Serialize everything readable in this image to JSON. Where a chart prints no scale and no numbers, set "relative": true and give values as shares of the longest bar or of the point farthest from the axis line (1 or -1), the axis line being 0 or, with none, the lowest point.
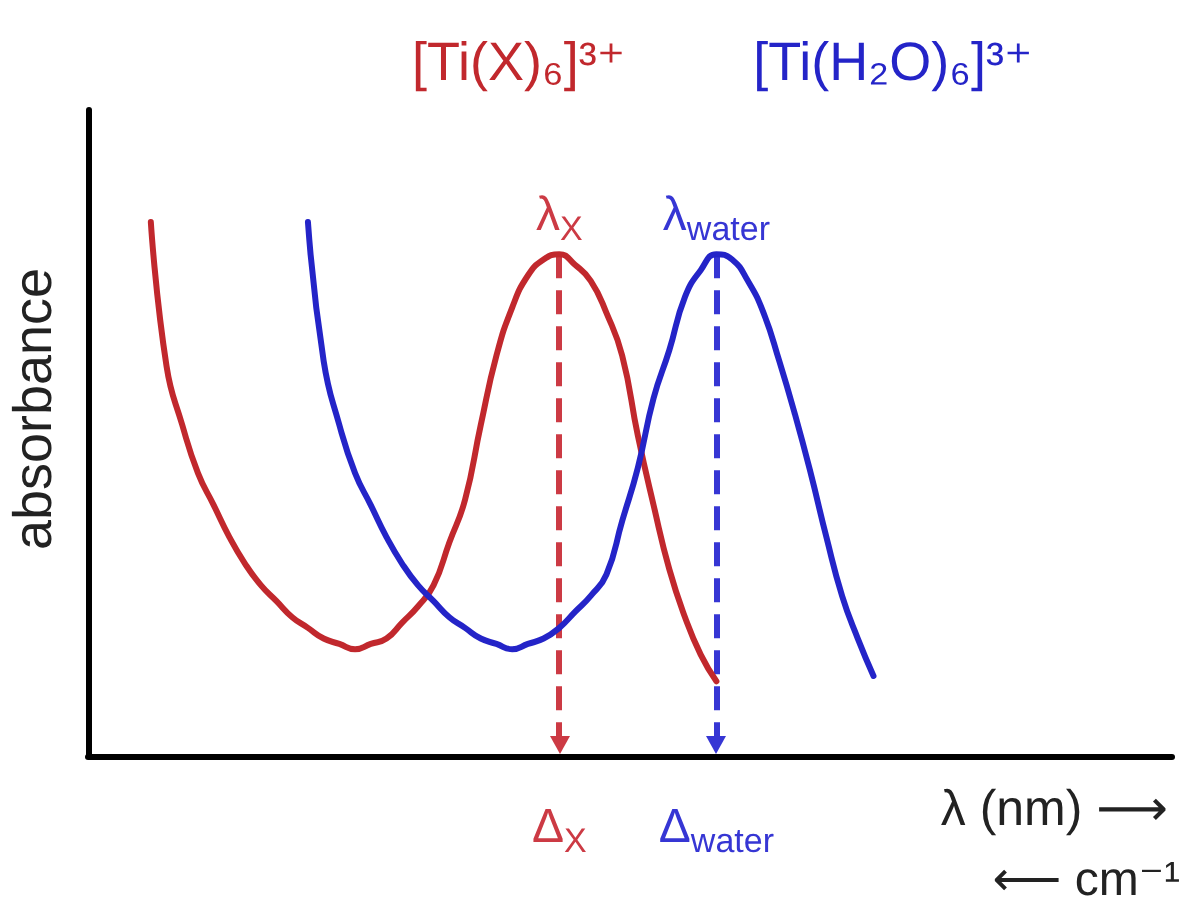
{
  "chart_data": {
    "type": "line",
    "relative": true,
    "ylabel": "absorbance",
    "xlabel": "λ (nm) ⟶",
    "annotations": [
      "⟵ cm⁻¹"
    ],
    "categories": [
      null,
      null,
      null,
      null,
      null,
      null,
      null,
      null,
      null,
      null,
      null,
      null,
      null,
      null,
      null,
      null,
      null,
      null,
      null,
      null,
      null,
      null,
      null,
      null,
      null,
      null,
      null,
      null,
      null,
      null,
      "Δ$_{X}$",
      null,
      null,
      null,
      null,
      null,
      null,
      null,
      null,
      null,
      "Δ$_{water}$",
      null,
      null,
      null,
      null,
      null,
      null,
      null,
      null,
      null,
      null,
      null,
      null,
      null,
      null,
      null,
      null,
      null,
      null,
      null,
      null,
      null,
      null,
      null,
      null,
      null,
      null,
      null,
      null,
      null
    ],
    "series": [
      {
        "name": "[Ti(X)₆]³⁺",
        "color": "#c1282d",
        "values": [
          null,
          null,
          null,
          null,
          1.0,
          0.73,
          0.62,
          0.53,
          0.47,
          0.41,
          0.36,
          0.32,
          0.29,
          0.26,
          0.24,
          0.22,
          0.21,
          0.2,
          0.21,
          0.22,
          0.25,
          0.28,
          0.32,
          0.4,
          0.48,
          0.62,
          0.75,
          0.84,
          0.9,
          0.93,
          0.94,
          0.92,
          0.89,
          0.83,
          0.75,
          0.6,
          0.47,
          0.35,
          0.26,
          0.19,
          0.14,
          null,
          null,
          null,
          null,
          null,
          null,
          null,
          null,
          null,
          null,
          null,
          null,
          null,
          null,
          null,
          null,
          null,
          null,
          null,
          null,
          null,
          null,
          null,
          null,
          null,
          null,
          null,
          null,
          null
        ]
      },
      {
        "name": "[Ti(H₂O)₆]³⁺",
        "color": "#2424c8",
        "values": [
          null,
          null,
          null,
          null,
          null,
          null,
          null,
          null,
          null,
          null,
          null,
          null,
          null,
          null,
          1.0,
          0.74,
          0.62,
          0.53,
          0.47,
          0.41,
          0.36,
          0.32,
          0.29,
          0.26,
          0.24,
          0.22,
          0.21,
          0.2,
          0.21,
          0.22,
          0.24,
          0.27,
          0.3,
          0.34,
          0.44,
          0.54,
          0.67,
          0.76,
          0.86,
          0.91,
          0.94,
          0.93,
          0.89,
          0.83,
          0.74,
          0.64,
          0.53,
          0.41,
          0.3,
          0.22,
          0.15,
          null,
          null,
          null,
          null,
          null,
          null,
          null,
          null,
          null,
          null,
          null,
          null,
          null,
          null,
          null,
          null,
          null,
          null,
          null
        ]
      }
    ],
    "ref_lines": [
      {
        "axis": "x",
        "value": "Δ$_{X}$",
        "label": "λ$_{X}$",
        "color": "#cc3a44",
        "line_style": "dashed"
      },
      {
        "axis": "x",
        "value": "Δ$_{water}$",
        "label": "λ$_{water}$",
        "color": "#3636d4",
        "line_style": "dashed"
      }
    ],
    "marker": "none"
  }
}
